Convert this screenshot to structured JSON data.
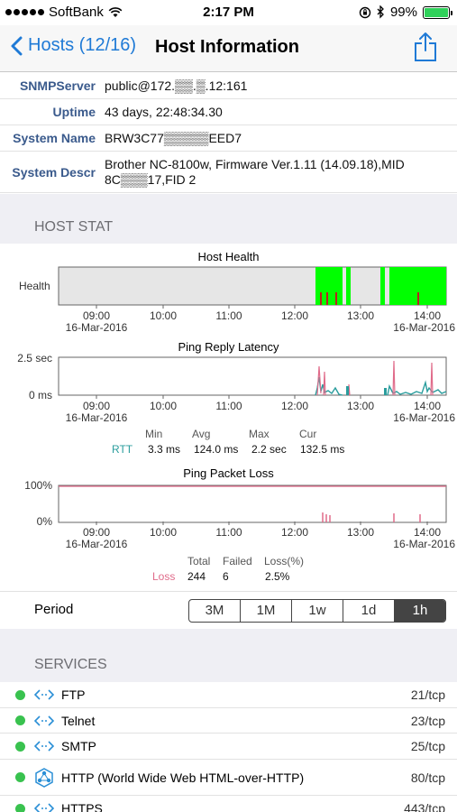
{
  "status_bar": {
    "carrier": "SoftBank",
    "time": "2:17 PM",
    "battery": "99%"
  },
  "nav": {
    "back_label": "Hosts (12/16)",
    "title": "Host Information"
  },
  "info": [
    {
      "label": "SNMPServer",
      "value": "public@172.▒▒.▒.12:161"
    },
    {
      "label": "Uptime",
      "value": "43 days, 22:48:34.30"
    },
    {
      "label": "System Name",
      "value": "BRW3C77▒▒▒▒▒EED7"
    },
    {
      "label": "System Descr",
      "value": "Brother NC-8100w, Firmware Ver.1.11  (14.09.18),MID 8C▒▒▒17,FID 2"
    }
  ],
  "host_stat": {
    "header": "HOST STAT",
    "x_ticks": [
      "09:00",
      "10:00",
      "11:00",
      "12:00",
      "13:00",
      "14:00"
    ],
    "date_left": "16-Mar-2016",
    "date_right": "16-Mar-2016",
    "health": {
      "title": "Host Health",
      "y_label": "Health"
    },
    "latency": {
      "title": "Ping Reply Latency",
      "y_ticks": [
        "2.5 sec",
        "0 ms"
      ],
      "stats_headers": [
        "Min",
        "Avg",
        "Max",
        "Cur"
      ],
      "stats_label": "RTT",
      "stats_values": [
        "3.3 ms",
        "124.0 ms",
        "2.2 sec",
        "132.5 ms"
      ]
    },
    "loss": {
      "title": "Ping Packet Loss",
      "y_ticks": [
        "100%",
        "0%"
      ],
      "stats_headers": [
        "Total",
        "Failed",
        "Loss(%)"
      ],
      "stats_label": "Loss",
      "stats_values": [
        "244",
        "6",
        "2.5%"
      ]
    }
  },
  "period": {
    "label": "Period",
    "options": [
      "3M",
      "1M",
      "1w",
      "1d",
      "1h"
    ],
    "selected": "1h"
  },
  "services": {
    "header": "SERVICES",
    "items": [
      {
        "name": "FTP",
        "port": "21/tcp",
        "icon": "link-arrows-icon"
      },
      {
        "name": "Telnet",
        "port": "23/tcp",
        "icon": "link-arrows-icon"
      },
      {
        "name": "SMTP",
        "port": "25/tcp",
        "icon": "link-arrows-icon"
      },
      {
        "name": "HTTP (World Wide Web HTML-over-HTTP)",
        "port": "80/tcp",
        "icon": "network-icon"
      },
      {
        "name": "HTTPS",
        "port": "443/tcp",
        "icon": "link-arrows-icon"
      }
    ]
  },
  "colors": {
    "accent": "#1f7ad6",
    "health_up": "#00ff00",
    "latency_line": "#2a9d9d",
    "loss_line": "#e06b8a",
    "status_ok": "#39c24f"
  }
}
